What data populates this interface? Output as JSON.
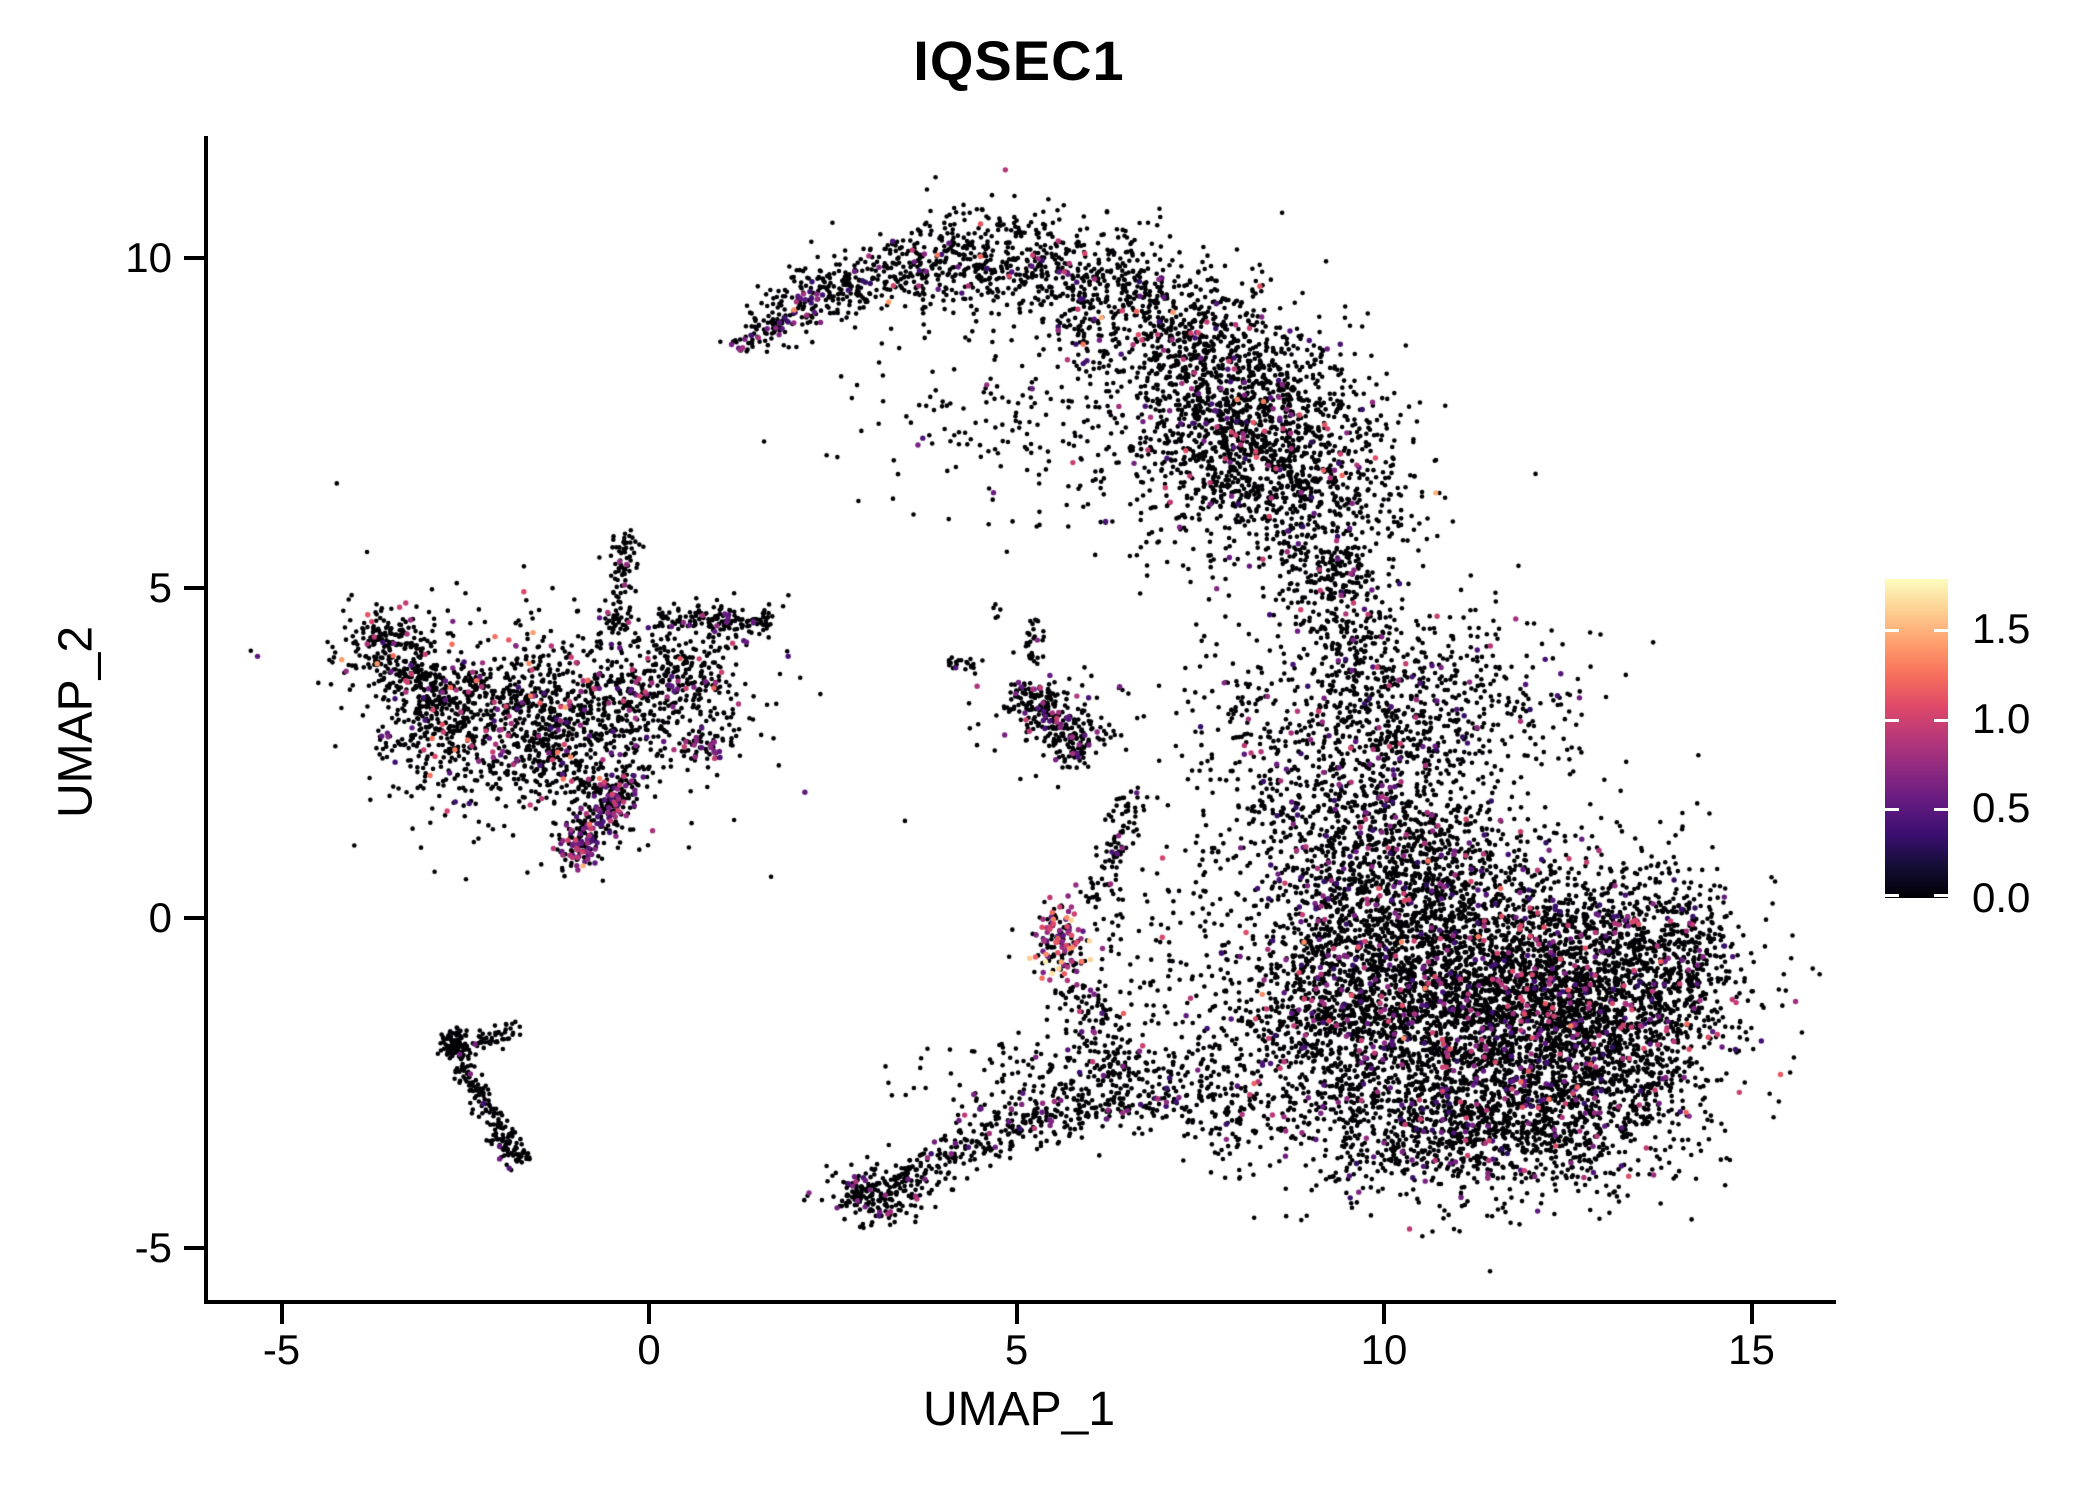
{
  "title": "IQSEC1",
  "chart_data": {
    "type": "scatter",
    "title": "IQSEC1",
    "xlabel": "UMAP_1",
    "ylabel": "UMAP_2",
    "xlim": [
      -6.0,
      16.2
    ],
    "ylim": [
      -5.85,
      11.85
    ],
    "grid": false,
    "x_ticks": [
      {
        "label": "-5",
        "value": -5
      },
      {
        "label": "0",
        "value": 0
      },
      {
        "label": "5",
        "value": 5
      },
      {
        "label": "10",
        "value": 10
      },
      {
        "label": "15",
        "value": 15
      }
    ],
    "y_ticks": [
      {
        "label": "10",
        "value": 10
      },
      {
        "label": "5",
        "value": 5
      },
      {
        "label": "0",
        "value": 0
      },
      {
        "label": "-5",
        "value": -5
      }
    ],
    "legend": {
      "position": "right",
      "vmin": 0.0,
      "vmax": 1.78,
      "ticks": [
        {
          "label": "1.5",
          "value": 1.5
        },
        {
          "label": "1.0",
          "value": 1.0
        },
        {
          "label": "0.5",
          "value": 0.5
        },
        {
          "label": "0.0",
          "value": 0.0
        }
      ],
      "tick_mark_color": "#ffffff",
      "colormap": "magma",
      "colormap_stops": [
        "#000004",
        "#140e36",
        "#3b0f70",
        "#641a80",
        "#8c2981",
        "#b73779",
        "#de4968",
        "#f7705c",
        "#fe9f6d",
        "#fecf92",
        "#fcfdbf"
      ]
    },
    "point_color_zero": "#000004",
    "clusters": [
      {
        "id": "crescent",
        "kind": "band",
        "path": [
          [
            1.15,
            8.6
          ],
          [
            1.8,
            9.15
          ],
          [
            2.6,
            9.6
          ],
          [
            3.6,
            9.92
          ],
          [
            4.7,
            10.02
          ],
          [
            5.85,
            9.8
          ],
          [
            6.9,
            9.25
          ],
          [
            7.85,
            8.4
          ],
          [
            8.55,
            7.4
          ],
          [
            9.0,
            6.4
          ],
          [
            9.3,
            5.55
          ]
        ],
        "sigma": [
          0.18,
          0.8
        ],
        "skew": 0.62,
        "n": 2500,
        "cf": 0.06,
        "expr": [
          0.3,
          1.15
        ],
        "hot": 0.003,
        "hotExpr": [
          1.2,
          1.5
        ]
      },
      {
        "id": "crescent-tail-color",
        "kind": "band",
        "path": [
          [
            1.15,
            8.6
          ],
          [
            2.4,
            9.45
          ]
        ],
        "sigma": [
          0.1,
          0.14
        ],
        "skew": 1,
        "n": 80,
        "cf": 0.33,
        "expr": [
          0.35,
          0.85
        ]
      },
      {
        "id": "crescent-fill",
        "kind": "gaussian",
        "center": [
          7.8,
          7.3
        ],
        "sigma": [
          0.95,
          0.9
        ],
        "n": 750,
        "cf": 0.07,
        "expr": [
          0.3,
          1.1
        ]
      },
      {
        "id": "crescent-bay",
        "kind": "gaussian",
        "center": [
          4.9,
          7.7
        ],
        "sigma": [
          1.25,
          0.75
        ],
        "n": 150,
        "cf": 0.04,
        "expr": [
          0.3,
          0.9
        ]
      },
      {
        "id": "neck",
        "kind": "band",
        "path": [
          [
            9.3,
            5.5
          ],
          [
            9.4,
            4.5
          ],
          [
            9.7,
            3.4
          ],
          [
            9.95,
            2.3
          ]
        ],
        "sigma": [
          0.3,
          0.5
        ],
        "skew": 1,
        "n": 520,
        "cf": 0.07,
        "expr": [
          0.3,
          1.0
        ]
      },
      {
        "id": "shoulder",
        "kind": "gaussian",
        "center": [
          11.0,
          3.3
        ],
        "sigma": [
          0.85,
          0.75
        ],
        "n": 380,
        "cf": 0.07,
        "expr": [
          0.3,
          1.0
        ]
      },
      {
        "id": "neck-west-web",
        "kind": "gaussian",
        "center": [
          8.9,
          1.7
        ],
        "sigma": [
          0.7,
          1.0
        ],
        "n": 330,
        "cf": 0.08,
        "expr": [
          0.3,
          1.0
        ]
      },
      {
        "id": "web-upper",
        "kind": "gaussian",
        "center": [
          8.1,
          3.1
        ],
        "sigma": [
          0.5,
          0.75
        ],
        "n": 100,
        "cf": 0.06,
        "expr": [
          0.3,
          0.9
        ]
      },
      {
        "id": "right-core",
        "kind": "gaussian",
        "center": [
          11.5,
          -1.5
        ],
        "sigma": [
          1.45,
          1.05
        ],
        "n": 3500,
        "cf": 0.085,
        "expr": [
          0.3,
          1.1
        ],
        "hot": 0.004,
        "hotExpr": [
          1.1,
          1.4
        ]
      },
      {
        "id": "right-upper",
        "kind": "gaussian",
        "center": [
          10.4,
          0.4
        ],
        "sigma": [
          0.95,
          0.85
        ],
        "n": 1150,
        "cf": 0.08,
        "expr": [
          0.3,
          1.1
        ]
      },
      {
        "id": "right-east",
        "kind": "gaussian",
        "center": [
          13.1,
          -1.0
        ],
        "sigma": [
          0.8,
          0.95
        ],
        "n": 1150,
        "cf": 0.08,
        "expr": [
          0.3,
          1.1
        ],
        "hot": 0.003,
        "hotExpr": [
          1.1,
          1.35
        ]
      },
      {
        "id": "right-west",
        "kind": "gaussian",
        "center": [
          9.35,
          -1.3
        ],
        "sigma": [
          0.6,
          0.95
        ],
        "n": 620,
        "cf": 0.09,
        "expr": [
          0.3,
          1.15
        ],
        "hot": 0.006,
        "hotExpr": [
          1.1,
          1.4
        ]
      },
      {
        "id": "right-bottom",
        "kind": "gaussian",
        "center": [
          10.6,
          -3.3
        ],
        "sigma": [
          1.05,
          0.5
        ],
        "n": 520,
        "cf": 0.07,
        "expr": [
          0.3,
          1.0
        ]
      },
      {
        "id": "right-bottom-east",
        "kind": "gaussian",
        "center": [
          12.35,
          -3.15
        ],
        "sigma": [
          0.85,
          0.55
        ],
        "n": 420,
        "cf": 0.07,
        "expr": [
          0.3,
          1.0
        ]
      },
      {
        "id": "right-hook",
        "kind": "gaussian",
        "center": [
          14.15,
          -0.35
        ],
        "sigma": [
          0.28,
          0.6
        ],
        "n": 150,
        "cf": 0.06,
        "expr": [
          0.3,
          0.9
        ]
      },
      {
        "id": "right-north",
        "kind": "gaussian",
        "center": [
          10.0,
          1.6
        ],
        "sigma": [
          0.7,
          0.6
        ],
        "n": 240,
        "cf": 0.08,
        "expr": [
          0.3,
          1.0
        ]
      },
      {
        "id": "left-nw",
        "kind": "gaussian",
        "center": [
          -3.55,
          4.1
        ],
        "sigma": [
          0.33,
          0.32
        ],
        "n": 220,
        "cf": 0.1,
        "expr": [
          0.35,
          1.35
        ],
        "hot": 0.012,
        "hotExpr": [
          1.3,
          1.55
        ]
      },
      {
        "id": "left-nw-arm",
        "kind": "band",
        "path": [
          [
            -3.25,
            3.85
          ],
          [
            -2.65,
            3.35
          ]
        ],
        "sigma": [
          0.15,
          0.2
        ],
        "skew": 1,
        "n": 80,
        "cf": 0.08,
        "expr": [
          0.35,
          1.1
        ]
      },
      {
        "id": "left-wmid",
        "kind": "gaussian",
        "center": [
          -2.85,
          3.0
        ],
        "sigma": [
          0.42,
          0.5
        ],
        "n": 360,
        "cf": 0.09,
        "expr": [
          0.35,
          1.3
        ]
      },
      {
        "id": "left-central",
        "kind": "gaussian",
        "center": [
          -1.3,
          2.9
        ],
        "sigma": [
          0.65,
          0.7
        ],
        "n": 800,
        "cf": 0.1,
        "expr": [
          0.35,
          1.3
        ],
        "hot": 0.005,
        "hotExpr": [
          1.25,
          1.45
        ]
      },
      {
        "id": "left-east",
        "kind": "gaussian",
        "center": [
          0.3,
          3.5
        ],
        "sigma": [
          0.55,
          0.5
        ],
        "n": 400,
        "cf": 0.09,
        "expr": [
          0.35,
          1.2
        ]
      },
      {
        "id": "left-spike",
        "kind": "band",
        "path": [
          [
            -0.45,
            4.35
          ],
          [
            -0.3,
            5.75
          ]
        ],
        "sigma": [
          0.09,
          0.11
        ],
        "skew": 1,
        "n": 100,
        "cf": 0.05,
        "expr": [
          0.35,
          0.9
        ]
      },
      {
        "id": "left-top-arm",
        "kind": "band",
        "path": [
          [
            0.1,
            4.5
          ],
          [
            1.65,
            4.48
          ]
        ],
        "sigma": [
          0.1,
          0.13
        ],
        "skew": 1,
        "n": 140,
        "cf": 0.12,
        "expr": [
          0.4,
          1.0
        ]
      },
      {
        "id": "left-south-arm",
        "kind": "band",
        "path": [
          [
            -0.3,
            2.15
          ],
          [
            -0.6,
            1.6
          ],
          [
            -0.95,
            1.1
          ]
        ],
        "sigma": [
          0.14,
          0.18
        ],
        "skew": 1,
        "n": 210,
        "cf": 0.3,
        "expr": [
          0.4,
          1.05
        ]
      },
      {
        "id": "left-purple-pocket",
        "kind": "gaussian",
        "center": [
          -1.0,
          1.0
        ],
        "sigma": [
          0.15,
          0.13
        ],
        "n": 55,
        "cf": 0.6,
        "expr": [
          0.45,
          1.0
        ],
        "hot": 0.03,
        "hotExpr": [
          1.3,
          1.55
        ]
      },
      {
        "id": "left-halo",
        "kind": "gaussian",
        "center": [
          -1.2,
          3.0
        ],
        "sigma": [
          1.5,
          1.05
        ],
        "n": 230,
        "cf": 0.06,
        "expr": [
          0.35,
          1.0
        ]
      },
      {
        "id": "left-knot-east",
        "kind": "gaussian",
        "center": [
          0.72,
          2.55
        ],
        "sigma": [
          0.17,
          0.12
        ],
        "n": 45,
        "cf": 0.5,
        "expr": [
          0.45,
          1.0
        ]
      },
      {
        "id": "check-main",
        "kind": "band",
        "path": [
          [
            -2.7,
            -1.7
          ],
          [
            -2.5,
            -2.3
          ],
          [
            -2.15,
            -2.95
          ],
          [
            -1.85,
            -3.55
          ]
        ],
        "sigma": [
          0.07,
          0.1
        ],
        "skew": 1,
        "n": 170,
        "cf": 0.02,
        "expr": [
          0.4,
          0.8
        ]
      },
      {
        "id": "check-knot-top",
        "kind": "gaussian",
        "center": [
          -2.67,
          -1.85
        ],
        "sigma": [
          0.09,
          0.16
        ],
        "n": 45,
        "cf": 0.04,
        "expr": [
          0.4,
          0.8
        ]
      },
      {
        "id": "check-branch",
        "kind": "band",
        "path": [
          [
            -2.6,
            -2.0
          ],
          [
            -2.2,
            -1.85
          ],
          [
            -1.8,
            -1.7
          ]
        ],
        "sigma": [
          0.06,
          0.09
        ],
        "skew": 1,
        "n": 60,
        "cf": 0.03,
        "expr": [
          0.4,
          0.8
        ]
      },
      {
        "id": "check-knot-bottom",
        "kind": "gaussian",
        "center": [
          -1.82,
          -3.62
        ],
        "sigma": [
          0.11,
          0.09
        ],
        "n": 35,
        "cf": 0.06,
        "expr": [
          0.4,
          0.8
        ]
      },
      {
        "id": "bottom-tip",
        "kind": "gaussian",
        "center": [
          3.05,
          -4.2
        ],
        "sigma": [
          0.3,
          0.22
        ],
        "n": 200,
        "cf": 0.12,
        "expr": [
          0.4,
          0.9
        ]
      },
      {
        "id": "bottom-band",
        "kind": "band",
        "path": [
          [
            3.35,
            -4.05
          ],
          [
            4.2,
            -3.55
          ],
          [
            5.2,
            -3.05
          ],
          [
            6.2,
            -2.7
          ],
          [
            7.2,
            -2.55
          ]
        ],
        "sigma": [
          0.16,
          0.3
        ],
        "skew": 1,
        "n": 420,
        "cf": 0.08,
        "expr": [
          0.35,
          1.0
        ],
        "hot": 0.005,
        "hotExpr": [
          1.1,
          1.3
        ]
      },
      {
        "id": "bottom-band-halo",
        "kind": "gaussian",
        "center": [
          5.6,
          -2.4
        ],
        "sigma": [
          1.0,
          0.5
        ],
        "n": 180,
        "cf": 0.07,
        "expr": [
          0.35,
          1.0
        ]
      },
      {
        "id": "bottom-join",
        "kind": "gaussian",
        "center": [
          7.9,
          -2.6
        ],
        "sigma": [
          0.55,
          0.55
        ],
        "n": 190,
        "cf": 0.07,
        "expr": [
          0.35,
          1.0
        ]
      },
      {
        "id": "center-small",
        "kind": "band",
        "path": [
          [
            5.0,
            3.5
          ],
          [
            5.45,
            3.05
          ],
          [
            5.95,
            2.5
          ]
        ],
        "sigma": [
          0.14,
          0.2
        ],
        "skew": 1,
        "n": 260,
        "cf": 0.1,
        "expr": [
          0.4,
          1.0
        ]
      },
      {
        "id": "center-north-bit",
        "kind": "gaussian",
        "center": [
          4.25,
          3.85
        ],
        "sigma": [
          0.12,
          0.08
        ],
        "n": 22,
        "cf": 0.05,
        "expr": [
          0.4,
          0.9
        ]
      },
      {
        "id": "center-string",
        "kind": "band",
        "path": [
          [
            5.2,
            3.9
          ],
          [
            5.3,
            4.55
          ]
        ],
        "sigma": [
          0.06,
          0.08
        ],
        "skew": 1,
        "n": 30,
        "cf": 0.04,
        "expr": [
          0.4,
          0.9
        ]
      },
      {
        "id": "center-pair",
        "kind": "gaussian",
        "center": [
          4.75,
          4.65
        ],
        "sigma": [
          0.05,
          0.05
        ],
        "n": 5,
        "cf": 0,
        "expr": [
          0.4,
          0.9
        ]
      },
      {
        "id": "center-halo",
        "kind": "gaussian",
        "center": [
          5.5,
          3.0
        ],
        "sigma": [
          0.5,
          0.5
        ],
        "n": 70,
        "cf": 0.07,
        "expr": [
          0.4,
          0.9
        ]
      },
      {
        "id": "hotspot",
        "kind": "gaussian",
        "center": [
          5.6,
          -0.35
        ],
        "sigma": [
          0.22,
          0.28
        ],
        "n": 150,
        "cf": 0.45,
        "expr": [
          0.5,
          1.45
        ],
        "hot": 0.06,
        "hotExpr": [
          1.5,
          1.78
        ]
      },
      {
        "id": "hotspot-trail",
        "kind": "band",
        "path": [
          [
            5.75,
            -0.9
          ],
          [
            6.1,
            -1.6
          ],
          [
            6.5,
            -2.3
          ]
        ],
        "sigma": [
          0.12,
          0.2
        ],
        "skew": 1,
        "n": 110,
        "cf": 0.12,
        "expr": [
          0.4,
          1.2
        ]
      },
      {
        "id": "hotspot-string-up",
        "kind": "band",
        "path": [
          [
            6.0,
            0.2
          ],
          [
            6.35,
            1.0
          ],
          [
            6.6,
            1.9
          ]
        ],
        "sigma": [
          0.1,
          0.14
        ],
        "skew": 1,
        "n": 90,
        "cf": 0.1,
        "expr": [
          0.4,
          1.0
        ]
      },
      {
        "id": "mid-gap-sparse",
        "kind": "gaussian",
        "center": [
          7.3,
          -0.4
        ],
        "sigma": [
          0.7,
          0.9
        ],
        "n": 140,
        "cf": 0.08,
        "expr": [
          0.35,
          1.1
        ]
      },
      {
        "id": "stray-upper",
        "kind": "gaussian",
        "center": [
          3.8,
          6.9
        ],
        "sigma": [
          1.2,
          0.7
        ],
        "n": 10,
        "cf": 0.15,
        "expr": [
          0.4,
          0.9
        ]
      }
    ]
  }
}
